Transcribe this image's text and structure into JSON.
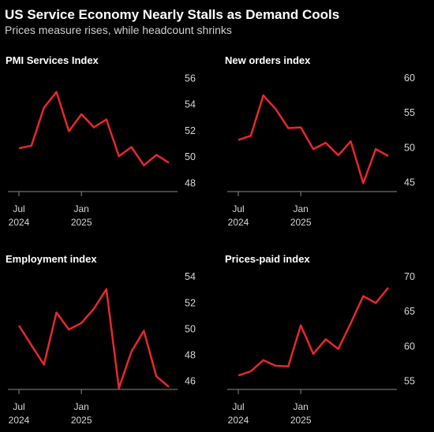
{
  "title": "US Service Economy Nearly Stalls as Demand Cools",
  "subtitle": "Prices measure rises, while headcount shrinks",
  "chart_data": [
    {
      "type": "line",
      "title": "PMI Services Index",
      "categories": [
        "Jul 2024",
        null,
        null,
        null,
        null,
        "Jan 2025",
        null,
        null,
        null,
        null,
        null,
        null,
        null
      ],
      "values": [
        50.7,
        50.9,
        53.8,
        55.0,
        52.0,
        53.3,
        52.3,
        52.9,
        50.1,
        50.8,
        49.4,
        50.2,
        49.6
      ],
      "color": "#e8282b",
      "ylim": [
        47.4,
        56.6
      ],
      "yticks": [
        48,
        50,
        52,
        54,
        56
      ]
    },
    {
      "type": "line",
      "title": "New orders index",
      "categories": [
        "Jul 2024",
        null,
        null,
        null,
        null,
        "Jan 2025",
        null,
        null,
        null,
        null,
        null,
        null,
        null
      ],
      "values": [
        51.2,
        51.8,
        57.6,
        55.6,
        52.9,
        53.0,
        49.9,
        50.8,
        49.0,
        51.0,
        45.0,
        49.9,
        48.9
      ],
      "color": "#e8282b",
      "ylim": [
        43.8,
        61.1
      ],
      "yticks": [
        45,
        50,
        55,
        60
      ]
    },
    {
      "type": "line",
      "title": "Employment index",
      "categories": [
        "Jul 2024",
        null,
        null,
        null,
        null,
        "Jan 2025",
        null,
        null,
        null,
        null,
        null,
        null,
        null
      ],
      "values": [
        50.3,
        48.8,
        47.3,
        51.3,
        50.0,
        50.5,
        51.6,
        53.1,
        45.5,
        48.3,
        49.9,
        46.4,
        45.6
      ],
      "color": "#e8282b",
      "ylim": [
        45.4,
        54.6
      ],
      "yticks": [
        46,
        48,
        50,
        52,
        54
      ]
    },
    {
      "type": "line",
      "title": "Prices-paid index",
      "categories": [
        "Jul 2024",
        null,
        null,
        null,
        null,
        "Jan 2025",
        null,
        null,
        null,
        null,
        null,
        null,
        null
      ],
      "values": [
        55.9,
        56.5,
        58.1,
        57.3,
        57.2,
        63.1,
        59.0,
        61.1,
        59.7,
        63.4,
        67.3,
        66.3,
        68.5
      ],
      "color": "#e8282b",
      "ylim": [
        53.9,
        71.1
      ],
      "yticks": [
        55,
        60,
        65,
        70
      ]
    }
  ]
}
